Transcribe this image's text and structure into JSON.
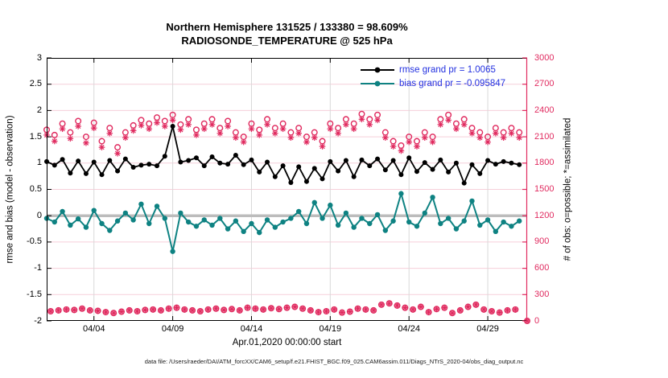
{
  "title": {
    "line1": "Northern Hemisphere 131525 / 133380 = 98.609%",
    "line2": "RADIOSONDE_TEMPERATURE @ 525 hPa"
  },
  "legend": [
    {
      "label": "rmse grand pr = 1.0065",
      "color": "#000000"
    },
    {
      "label": "bias grand pr = -0.095847",
      "color": "#0e8282"
    }
  ],
  "legend_text_color": "#2230e0",
  "axes": {
    "ylabel_left": "rmse and bias (model - observation)",
    "ylabel_right": "# of obs: o=possible; *=assimilated",
    "xlabel": "Apr.01,2020 00:00:00 start",
    "left_ticks": [
      {
        "label": "3",
        "v": 3
      },
      {
        "label": "2.5",
        "v": 2.5
      },
      {
        "label": "2",
        "v": 2
      },
      {
        "label": "1.5",
        "v": 1.5
      },
      {
        "label": "1",
        "v": 1
      },
      {
        "label": "0.5",
        "v": 0.5
      },
      {
        "label": "0",
        "v": 0
      },
      {
        "label": "-0.5",
        "v": -0.5
      },
      {
        "label": "-1",
        "v": -1
      },
      {
        "label": "-1.5",
        "v": -1.5
      },
      {
        "label": "-2",
        "v": -2
      }
    ],
    "right_ticks": [
      {
        "label": "3000",
        "v": 3000
      },
      {
        "label": "2700",
        "v": 2700
      },
      {
        "label": "2400",
        "v": 2400
      },
      {
        "label": "2100",
        "v": 2100
      },
      {
        "label": "1800",
        "v": 1800
      },
      {
        "label": "1500",
        "v": 1500
      },
      {
        "label": "1200",
        "v": 1200
      },
      {
        "label": "900",
        "v": 900
      },
      {
        "label": "600",
        "v": 600
      },
      {
        "label": "300",
        "v": 300
      },
      {
        "label": "0",
        "v": 0
      }
    ],
    "x_ticks": [
      {
        "label": "04/04",
        "day": 3
      },
      {
        "label": "04/09",
        "day": 8
      },
      {
        "label": "04/14",
        "day": 13
      },
      {
        "label": "04/19",
        "day": 18
      },
      {
        "label": "04/24",
        "day": 23
      },
      {
        "label": "04/29",
        "day": 28
      }
    ]
  },
  "caption": "data file: /Users/raeder/DAI/ATM_forcXX/CAM6_setup/f.e21.FHIST_BGC.f09_025.CAM6assim.011/Diags_NTrS_2020-04/obs_diag_output.nc",
  "colors": {
    "rmse": "#000000",
    "bias": "#0e8282",
    "obs_pink": "#e02a5f",
    "grid_h_pink": "#f6cfda",
    "grid_v_gray": "#d9d9d9",
    "zero_line_gray": "#bcbcbc"
  },
  "chart_data": {
    "type": "line",
    "title": "Northern Hemisphere 131525 / 133380 = 98.609% | RADIOSONDE_TEMPERATURE @ 525 hPa",
    "xlabel": "Apr.01,2020 00:00:00 start",
    "ylabel_left": "rmse and bias (model - observation)",
    "ylabel_right": "# of obs: o=possible; *=assimilated",
    "xlim_days": [
      0,
      30.5
    ],
    "ylim_left": [
      -2,
      3
    ],
    "ylim_right": [
      0,
      3000
    ],
    "grid": true,
    "legend_position": "top-right-inside",
    "time_step_days": 0.5,
    "series": [
      {
        "name": "rmse",
        "grand_value": 1.0065,
        "x_start": 0,
        "x_step": 0.5,
        "values": [
          1.03,
          0.96,
          1.07,
          0.81,
          1.04,
          0.8,
          1.02,
          0.78,
          1.05,
          0.85,
          1.08,
          0.92,
          0.96,
          0.98,
          0.95,
          1.13,
          1.7,
          1.02,
          1.05,
          1.1,
          0.95,
          1.12,
          1.0,
          0.98,
          1.15,
          0.97,
          1.06,
          0.83,
          1.02,
          0.74,
          0.95,
          0.63,
          0.93,
          0.65,
          0.9,
          0.7,
          1.03,
          0.85,
          1.05,
          0.74,
          1.06,
          0.95,
          1.08,
          0.87,
          1.05,
          0.78,
          1.1,
          0.84,
          1.01,
          0.88,
          1.06,
          0.83,
          1.0,
          0.62,
          0.97,
          0.8,
          1.05,
          0.98,
          1.03,
          1.0,
          0.97
        ]
      },
      {
        "name": "bias",
        "grand_value": -0.095847,
        "x_start": 0,
        "x_step": 0.5,
        "values": [
          -0.05,
          -0.12,
          0.08,
          -0.18,
          -0.06,
          -0.22,
          0.1,
          -0.15,
          -0.28,
          -0.1,
          0.05,
          -0.08,
          0.22,
          -0.15,
          0.18,
          -0.05,
          -0.68,
          0.05,
          -0.12,
          -0.2,
          -0.08,
          -0.18,
          -0.05,
          -0.25,
          -0.1,
          -0.3,
          -0.15,
          -0.32,
          -0.08,
          -0.22,
          -0.12,
          -0.05,
          0.08,
          -0.15,
          0.25,
          -0.05,
          0.2,
          -0.18,
          0.05,
          -0.22,
          -0.05,
          -0.15,
          0.02,
          -0.28,
          -0.1,
          0.42,
          -0.12,
          -0.2,
          0.05,
          0.35,
          -0.15,
          -0.05,
          -0.25,
          -0.1,
          0.28,
          -0.18,
          -0.08,
          -0.3,
          -0.12,
          -0.2,
          -0.1
        ]
      },
      {
        "name": "possible_obs",
        "marker": "o",
        "x_start": 0,
        "x_step": 0.5,
        "values": [
          2180,
          2120,
          2250,
          2150,
          2280,
          2100,
          2260,
          2050,
          2200,
          1980,
          2150,
          2230,
          2290,
          2250,
          2320,
          2280,
          2350,
          2240,
          2300,
          2180,
          2250,
          2300,
          2200,
          2280,
          2150,
          2100,
          2250,
          2180,
          2300,
          2200,
          2250,
          2150,
          2200,
          2100,
          2150,
          2050,
          2250,
          2200,
          2300,
          2250,
          2360,
          2300,
          2350,
          2150,
          2050,
          2000,
          2100,
          2050,
          2150,
          2100,
          2300,
          2350,
          2250,
          2300,
          2200,
          2150,
          2100,
          2200,
          2150,
          2200,
          2150
        ]
      },
      {
        "name": "assimilated_obs",
        "marker": "*",
        "x_start": 0,
        "x_step": 0.5,
        "values": [
          2120,
          2050,
          2190,
          2080,
          2220,
          2030,
          2200,
          1980,
          2140,
          1910,
          2090,
          2170,
          2230,
          2190,
          2260,
          2220,
          2290,
          2180,
          2240,
          2120,
          2190,
          2240,
          2140,
          2220,
          2090,
          2040,
          2190,
          2120,
          2240,
          2140,
          2190,
          2090,
          2140,
          2040,
          2090,
          1990,
          2190,
          2140,
          2240,
          2190,
          2300,
          2240,
          2290,
          2090,
          1990,
          1940,
          2040,
          1990,
          2090,
          2040,
          2240,
          2290,
          2190,
          2240,
          2140,
          2090,
          2040,
          2140,
          2090,
          2140,
          2090
        ]
      },
      {
        "name": "off_synoptic_obs",
        "marker": "o*",
        "x_start": 0.25,
        "x_step": 0.5,
        "values": [
          110,
          120,
          130,
          125,
          140,
          120,
          115,
          100,
          90,
          105,
          120,
          110,
          125,
          130,
          120,
          140,
          150,
          130,
          120,
          110,
          130,
          140,
          125,
          135,
          120,
          150,
          140,
          130,
          145,
          135,
          150,
          160,
          140,
          120,
          100,
          110,
          130,
          95,
          105,
          140,
          130,
          120,
          185,
          200,
          175,
          150,
          130,
          160,
          100,
          135,
          150,
          90,
          120,
          160,
          185,
          130,
          110,
          95,
          120,
          130
        ]
      }
    ],
    "terminal_zero_point": {
      "day": 30.5,
      "count": 0
    }
  }
}
